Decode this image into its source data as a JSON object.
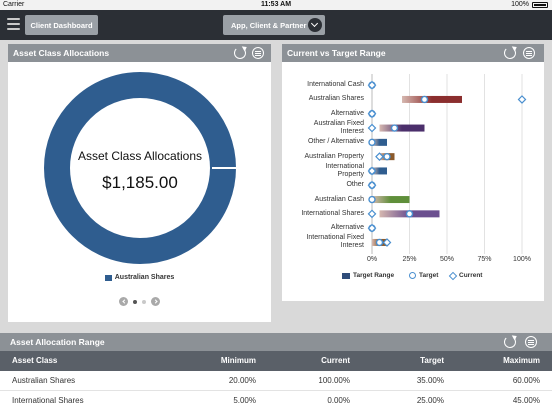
{
  "status_bar": {
    "carrier": "Carrier",
    "time": "11:53 AM",
    "battery": "100%"
  },
  "nav": {
    "dashboard_label": "Client Dashboard",
    "scope_label": "App, Client & Partner"
  },
  "allocations_panel": {
    "title": "Asset Class Allocations",
    "donut_title": "Asset Class Allocations",
    "donut_value": "$1,185.00",
    "legend_label": "Australian Shares",
    "colors": {
      "ring": "#2f5d8f"
    }
  },
  "range_panel": {
    "title": "Current vs Target Range",
    "legend": {
      "range": "Target Range",
      "target": "Target",
      "current": "Current"
    }
  },
  "chart_data": {
    "type": "bar",
    "categories": [
      "International Cash",
      "Australian Shares",
      "Alternative",
      "Australian Fixed Interest",
      "Other / Alternative",
      "Australian Property",
      "International Property",
      "Other",
      "Australian Cash",
      "International Shares",
      "Alternative",
      "International Fixed Interest"
    ],
    "category_lines": [
      [
        "International Cash"
      ],
      [
        "Australian Shares"
      ],
      [
        "Alternative"
      ],
      [
        "Australian Fixed",
        "Interest"
      ],
      [
        "Other / Alternative"
      ],
      [
        "Australian Property"
      ],
      [
        "International",
        "Property"
      ],
      [
        "Other"
      ],
      [
        "Australian Cash"
      ],
      [
        "International Shares"
      ],
      [
        "Alternative"
      ],
      [
        "International Fixed",
        "Interest"
      ]
    ],
    "x_ticks": [
      "0%",
      "25%",
      "50%",
      "75%",
      "100%"
    ],
    "xlim": [
      0,
      100
    ],
    "series": [
      {
        "name": "Target Range",
        "values": [
          [
            0,
            0
          ],
          [
            20,
            60
          ],
          [
            0,
            0
          ],
          [
            5,
            35
          ],
          [
            0,
            10
          ],
          [
            5,
            15
          ],
          [
            0,
            10
          ],
          [
            0,
            0
          ],
          [
            0,
            25
          ],
          [
            5,
            45
          ],
          [
            0,
            0
          ],
          [
            0,
            10
          ]
        ]
      },
      {
        "name": "Target",
        "values": [
          0,
          35,
          0,
          15,
          0,
          10,
          0,
          0,
          0,
          25,
          0,
          5
        ]
      },
      {
        "name": "Current",
        "values": [
          0,
          100,
          0,
          0,
          0,
          5,
          0,
          0,
          0,
          0,
          0,
          10
        ]
      }
    ],
    "range_colors": [
      "#2f4d7a",
      "#8b2e2e",
      "#2f4d7a",
      "#4b2f6b",
      "#2f5d8f",
      "#8b5a2b",
      "#2f5d8f",
      "#2f4d7a",
      "#5f8f3a",
      "#6b4f8f",
      "#2f4d7a",
      "#8b5a2b"
    ],
    "marker_color": "#4a8fcf",
    "legend_position": "bottom"
  },
  "range_table": {
    "title": "Asset Allocation Range",
    "columns": [
      "Asset Class",
      "Minimum",
      "Current",
      "Target",
      "Maximum"
    ],
    "rows": [
      [
        "Australian Shares",
        "20.00%",
        "100.00%",
        "35.00%",
        "60.00%"
      ],
      [
        "International Shares",
        "5.00%",
        "0.00%",
        "25.00%",
        "45.00%"
      ]
    ]
  }
}
